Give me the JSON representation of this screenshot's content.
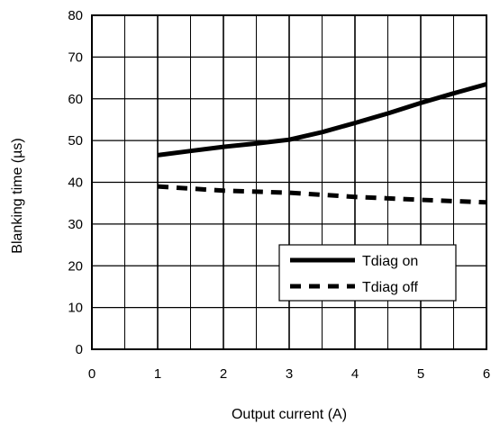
{
  "chart_data": {
    "type": "line",
    "xlabel": "Output current (A)",
    "ylabel": "Blanking time (µs)",
    "xlim": [
      0,
      6
    ],
    "ylim": [
      0,
      80
    ],
    "x_ticks": [
      "0",
      "1",
      "2",
      "3",
      "4",
      "5",
      "6"
    ],
    "y_ticks": [
      "0",
      "10",
      "20",
      "30",
      "40",
      "50",
      "60",
      "70",
      "80"
    ],
    "grid": true,
    "legend_position": "bottom-right",
    "series": [
      {
        "name": "Tdiag on",
        "style": "solid",
        "color": "#000000",
        "x": [
          1,
          1.5,
          2,
          2.5,
          3,
          3.5,
          4,
          4.5,
          5,
          5.5,
          6
        ],
        "y": [
          46.5,
          47.5,
          48.5,
          49.3,
          50.2,
          52,
          54.2,
          56.5,
          59,
          61.3,
          63.5
        ]
      },
      {
        "name": "Tdiag off",
        "style": "dashed",
        "color": "#000000",
        "x": [
          1,
          2,
          3,
          4,
          5,
          6
        ],
        "y": [
          39,
          38,
          37.5,
          36.5,
          35.8,
          35.2
        ]
      }
    ]
  }
}
